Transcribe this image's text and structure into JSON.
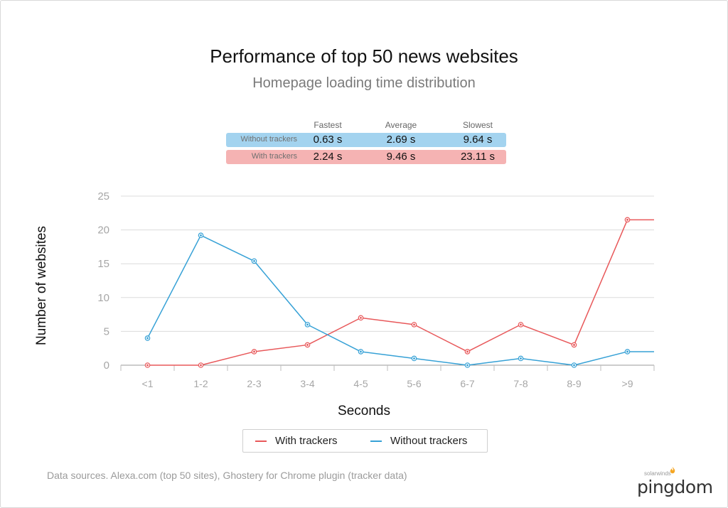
{
  "header": {
    "title": "Performance of top 50 news websites",
    "subtitle": "Homepage loading time distribution"
  },
  "stats": {
    "columns": [
      "Fastest",
      "Average",
      "Slowest"
    ],
    "rows": [
      {
        "label": "Without trackers",
        "color": "#a3d3ef",
        "values": [
          "0.63 s",
          "2.69 s",
          "9.64 s"
        ]
      },
      {
        "label": "With trackers",
        "color": "#f5b3b3",
        "values": [
          "2.24 s",
          "9.46 s",
          "23.11 s"
        ]
      }
    ]
  },
  "chart_data": {
    "type": "line",
    "title": "",
    "xlabel": "Seconds",
    "ylabel": "Number of websites",
    "categories": [
      "<1",
      "1-2",
      "2-3",
      "3-4",
      "4-5",
      "5-6",
      "6-7",
      "7-8",
      "8-9",
      ">9"
    ],
    "ylim": [
      0,
      25
    ],
    "yticks": [
      0,
      5,
      10,
      15,
      20,
      25
    ],
    "grid": true,
    "legend_position": "bottom",
    "series": [
      {
        "name": "With trackers",
        "color": "#e8585a",
        "values": [
          0,
          0,
          2,
          3,
          7,
          6,
          2,
          6,
          3,
          21.5
        ]
      },
      {
        "name": "Without trackers",
        "color": "#36a1d6",
        "values": [
          4,
          19.2,
          15.4,
          6,
          2,
          1,
          0,
          1,
          0,
          2
        ]
      }
    ]
  },
  "footer": {
    "sources": "Data sources. Alexa.com (top 50 sites), Ghostery for Chrome plugin (tracker data)",
    "brand_small": "solarwinds",
    "brand": "pingdom"
  }
}
